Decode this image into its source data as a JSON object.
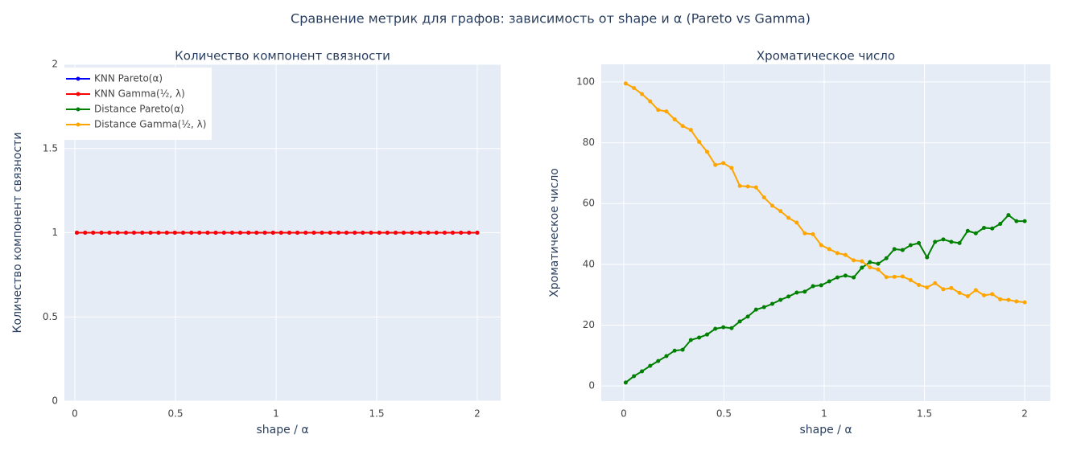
{
  "title": "Сравнение метрик для графов: зависимость от shape и α (Pareto vs Gamma)",
  "chart_data": [
    {
      "type": "line",
      "title": "Количество компонент связности",
      "xlabel": "shape / α",
      "ylabel": "Количество компонент связности",
      "legend": "top-left",
      "grid": true,
      "xlim": [
        -0.052,
        2.116
      ],
      "ylim": [
        0,
        2
      ],
      "xticks": [
        0,
        0.5,
        1,
        1.5,
        2
      ],
      "yticks": [
        0,
        0.5,
        1,
        1.5,
        2
      ],
      "x": [
        0.01,
        0.051,
        0.091,
        0.132,
        0.172,
        0.213,
        0.254,
        0.294,
        0.335,
        0.376,
        0.416,
        0.457,
        0.497,
        0.538,
        0.579,
        0.619,
        0.66,
        0.7,
        0.741,
        0.782,
        0.822,
        0.863,
        0.903,
        0.944,
        0.985,
        1.025,
        1.066,
        1.106,
        1.147,
        1.188,
        1.228,
        1.269,
        1.31,
        1.35,
        1.391,
        1.431,
        1.472,
        1.513,
        1.553,
        1.594,
        1.634,
        1.675,
        1.716,
        1.756,
        1.797,
        1.838,
        1.878,
        1.919,
        1.959,
        2.0
      ],
      "series": [
        {
          "name": "KNN Pareto(α)",
          "color": "#0000ff",
          "values": [
            1,
            1,
            1,
            1,
            1,
            1,
            1,
            1,
            1,
            1,
            1,
            1,
            1,
            1,
            1,
            1,
            1,
            1,
            1,
            1,
            1,
            1,
            1,
            1,
            1,
            1,
            1,
            1,
            1,
            1,
            1,
            1,
            1,
            1,
            1,
            1,
            1,
            1,
            1,
            1,
            1,
            1,
            1,
            1,
            1,
            1,
            1,
            1,
            1,
            1
          ]
        },
        {
          "name": "KNN Gamma(½, λ)",
          "color": "#ff0000",
          "values": [
            1,
            1,
            1,
            1,
            1,
            1,
            1,
            1,
            1,
            1,
            1,
            1,
            1,
            1,
            1,
            1,
            1,
            1,
            1,
            1,
            1,
            1,
            1,
            1,
            1,
            1,
            1,
            1,
            1,
            1,
            1,
            1,
            1,
            1,
            1,
            1,
            1,
            1,
            1,
            1,
            1,
            1,
            1,
            1,
            1,
            1,
            1,
            1,
            1,
            1
          ]
        }
      ]
    },
    {
      "type": "line",
      "title": "Хроматическое число",
      "xlabel": "shape / α",
      "ylabel": "Хроматическое число",
      "grid": true,
      "xlim": [
        -0.112,
        2.128
      ],
      "ylim": [
        -5.0,
        105.8
      ],
      "xticks": [
        0,
        0.5,
        1,
        1.5,
        2
      ],
      "yticks": [
        0,
        20,
        40,
        60,
        80,
        100
      ],
      "x": [
        0.01,
        0.051,
        0.091,
        0.132,
        0.172,
        0.213,
        0.254,
        0.294,
        0.335,
        0.376,
        0.416,
        0.457,
        0.497,
        0.538,
        0.579,
        0.619,
        0.66,
        0.7,
        0.741,
        0.782,
        0.822,
        0.863,
        0.903,
        0.944,
        0.985,
        1.025,
        1.066,
        1.106,
        1.147,
        1.188,
        1.228,
        1.269,
        1.31,
        1.35,
        1.391,
        1.431,
        1.472,
        1.513,
        1.553,
        1.594,
        1.634,
        1.675,
        1.716,
        1.756,
        1.797,
        1.838,
        1.878,
        1.919,
        1.959,
        2.0
      ],
      "series": [
        {
          "name": "Distance Pareto(α)",
          "color": "#008000",
          "values": [
            1.1,
            3.2,
            4.8,
            6.6,
            8.2,
            9.8,
            11.6,
            11.9,
            15.1,
            15.9,
            16.9,
            18.8,
            19.3,
            19.0,
            21.2,
            22.8,
            25.1,
            25.9,
            27,
            28.3,
            29.4,
            30.7,
            31,
            32.8,
            33.1,
            34.4,
            35.7,
            36.3,
            35.7,
            38.9,
            40.7,
            40.2,
            42,
            45,
            44.7,
            46.3,
            47,
            42.3,
            47.4,
            48.2,
            47.4,
            47,
            51,
            50.2,
            52,
            51.8,
            53.3,
            56.2,
            54.2,
            54.2
          ]
        },
        {
          "name": "Distance Gamma(½, λ)",
          "color": "#ffa500",
          "values": [
            99.5,
            98,
            96,
            93.6,
            90.8,
            90.3,
            87.7,
            85.5,
            84.2,
            80.3,
            77,
            72.7,
            73.3,
            71.7,
            65.8,
            65.6,
            65.3,
            62,
            59.3,
            57.5,
            55.3,
            53.7,
            50.2,
            49.9,
            46.3,
            45,
            43.7,
            43.1,
            41.3,
            41,
            39,
            38.3,
            35.8,
            35.9,
            36,
            34.8,
            33.2,
            32.4,
            33.8,
            31.8,
            32.2,
            30.6,
            29.5,
            31.5,
            29.8,
            30.2,
            28.5,
            28.3,
            27.8,
            27.5
          ]
        }
      ]
    }
  ]
}
